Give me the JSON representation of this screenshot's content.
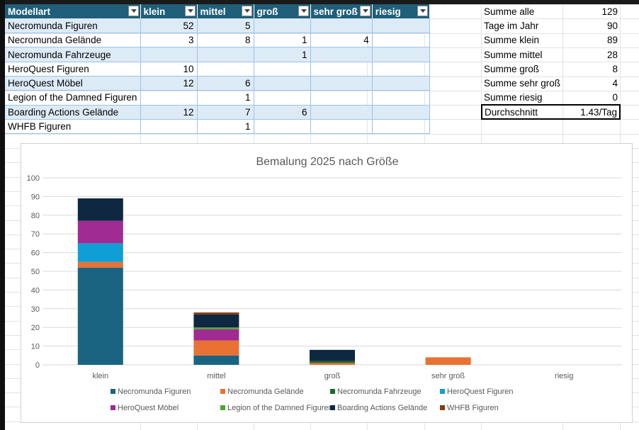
{
  "table": {
    "headers": [
      "Modellart",
      "klein",
      "mittel",
      "groß",
      "sehr groß",
      "riesig"
    ],
    "rows": [
      [
        "Necromunda Figuren",
        "52",
        "5",
        "",
        "",
        ""
      ],
      [
        "Necromunda Gelände",
        "3",
        "8",
        "1",
        "4",
        ""
      ],
      [
        "Necromunda Fahrzeuge",
        "",
        "",
        "1",
        "",
        ""
      ],
      [
        "HeroQuest Figuren",
        "10",
        "",
        "",
        "",
        ""
      ],
      [
        "HeroQuest Möbel",
        "12",
        "6",
        "",
        "",
        ""
      ],
      [
        "Legion of the Damned Figuren",
        "",
        "1",
        "",
        "",
        ""
      ],
      [
        "Boarding Actions Gelände",
        "12",
        "7",
        "6",
        "",
        ""
      ],
      [
        "WHFB Figuren",
        "",
        "1",
        "",
        "",
        ""
      ]
    ]
  },
  "summary": [
    {
      "label": "Summe alle",
      "value": "129"
    },
    {
      "label": "Tage im Jahr",
      "value": "90"
    },
    {
      "label": "Summe klein",
      "value": "89"
    },
    {
      "label": "Summe mittel",
      "value": "28"
    },
    {
      "label": "Summe groß",
      "value": "8"
    },
    {
      "label": "Summe sehr groß",
      "value": "4"
    },
    {
      "label": "Summe riesig",
      "value": "0"
    },
    {
      "label": "Durchschnitt",
      "value": "1.43/Tag"
    }
  ],
  "colors": {
    "header_bg": "#1f5f7a",
    "band_bg": "#ddebf7",
    "series": [
      "#1a6482",
      "#e97132",
      "#196b24",
      "#0f9ed5",
      "#a02b93",
      "#4ea72e",
      "#0e2841",
      "#8c3a0e"
    ]
  },
  "chart_data": {
    "type": "bar",
    "stacked": true,
    "title": "Bemalung 2025 nach Größe",
    "categories": [
      "klein",
      "mittel",
      "groß",
      "sehr groß",
      "riesig"
    ],
    "ylim": [
      0,
      100
    ],
    "yticks": [
      "0",
      "10",
      "20",
      "30",
      "40",
      "50",
      "60",
      "70",
      "80",
      "90",
      "100"
    ],
    "grid": true,
    "legend_position": "bottom",
    "series": [
      {
        "name": "Necromunda Figuren",
        "values": [
          52,
          5,
          0,
          0,
          0
        ]
      },
      {
        "name": "Necromunda Gelände",
        "values": [
          3,
          8,
          1,
          4,
          0
        ]
      },
      {
        "name": "Necromunda Fahrzeuge",
        "values": [
          0,
          0,
          1,
          0,
          0
        ]
      },
      {
        "name": "HeroQuest Figuren",
        "values": [
          10,
          0,
          0,
          0,
          0
        ]
      },
      {
        "name": "HeroQuest Möbel",
        "values": [
          12,
          6,
          0,
          0,
          0
        ]
      },
      {
        "name": "Legion of the Damned Figuren",
        "values": [
          0,
          1,
          0,
          0,
          0
        ]
      },
      {
        "name": "Boarding Actions Gelände",
        "values": [
          12,
          7,
          6,
          0,
          0
        ]
      },
      {
        "name": "WHFB Figuren",
        "values": [
          0,
          1,
          0,
          0,
          0
        ]
      }
    ]
  }
}
